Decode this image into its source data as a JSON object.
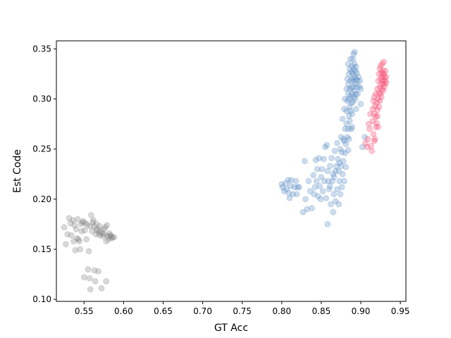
{
  "chart_data": {
    "type": "scatter",
    "xlabel": "GT Acc",
    "ylabel": "Est Code",
    "xlim": [
      0.515,
      0.957
    ],
    "ylim": [
      0.098,
      0.358
    ],
    "xticks": [
      "0.55",
      "0.60",
      "0.65",
      "0.70",
      "0.75",
      "0.80",
      "0.85",
      "0.90",
      "0.95"
    ],
    "yticks": [
      "0.10",
      "0.15",
      "0.20",
      "0.25",
      "0.30",
      "0.35"
    ],
    "grid": false,
    "legend": "none",
    "series": [
      {
        "color": "#808080",
        "opacity": 0.3,
        "points": [
          [
            0.525,
            0.172
          ],
          [
            0.527,
            0.155
          ],
          [
            0.529,
            0.165
          ],
          [
            0.531,
            0.181
          ],
          [
            0.533,
            0.176
          ],
          [
            0.534,
            0.164
          ],
          [
            0.536,
            0.179
          ],
          [
            0.537,
            0.158
          ],
          [
            0.539,
            0.149
          ],
          [
            0.54,
            0.17
          ],
          [
            0.541,
            0.161
          ],
          [
            0.542,
            0.18
          ],
          [
            0.543,
            0.16
          ],
          [
            0.545,
            0.15
          ],
          [
            0.546,
            0.175
          ],
          [
            0.547,
            0.168
          ],
          [
            0.548,
            0.177
          ],
          [
            0.549,
            0.178
          ],
          [
            0.55,
            0.122
          ],
          [
            0.551,
            0.169
          ],
          [
            0.552,
            0.176
          ],
          [
            0.553,
            0.16
          ],
          [
            0.554,
            0.174
          ],
          [
            0.555,
            0.13
          ],
          [
            0.556,
            0.148
          ],
          [
            0.557,
            0.121
          ],
          [
            0.558,
            0.173
          ],
          [
            0.558,
            0.11
          ],
          [
            0.559,
            0.184
          ],
          [
            0.56,
            0.168
          ],
          [
            0.561,
            0.177
          ],
          [
            0.562,
            0.179
          ],
          [
            0.563,
            0.173
          ],
          [
            0.563,
            0.129
          ],
          [
            0.564,
            0.118
          ],
          [
            0.565,
            0.165
          ],
          [
            0.566,
            0.175
          ],
          [
            0.567,
            0.17
          ],
          [
            0.568,
            0.128
          ],
          [
            0.569,
            0.166
          ],
          [
            0.57,
            0.164
          ],
          [
            0.57,
            0.173
          ],
          [
            0.571,
            0.168
          ],
          [
            0.572,
            0.111
          ],
          [
            0.573,
            0.166
          ],
          [
            0.574,
            0.163
          ],
          [
            0.575,
            0.17
          ],
          [
            0.576,
            0.165
          ],
          [
            0.577,
            0.172
          ],
          [
            0.578,
            0.158
          ],
          [
            0.578,
            0.118
          ],
          [
            0.579,
            0.174
          ],
          [
            0.58,
            0.163
          ],
          [
            0.581,
            0.16
          ],
          [
            0.582,
            0.166
          ],
          [
            0.583,
            0.163
          ],
          [
            0.584,
            0.164
          ],
          [
            0.585,
            0.161
          ],
          [
            0.586,
            0.162
          ],
          [
            0.588,
            0.162
          ],
          [
            0.566,
            0.169
          ],
          [
            0.544,
            0.158
          ],
          [
            0.538,
            0.174
          ]
        ]
      },
      {
        "color": "#5b8ac2",
        "opacity": 0.3,
        "points": [
          [
            0.8,
            0.215
          ],
          [
            0.801,
            0.212
          ],
          [
            0.803,
            0.208
          ],
          [
            0.805,
            0.216
          ],
          [
            0.806,
            0.21
          ],
          [
            0.808,
            0.219
          ],
          [
            0.809,
            0.206
          ],
          [
            0.81,
            0.201
          ],
          [
            0.811,
            0.213
          ],
          [
            0.812,
            0.219
          ],
          [
            0.814,
            0.205
          ],
          [
            0.816,
            0.212
          ],
          [
            0.818,
            0.218
          ],
          [
            0.819,
            0.205
          ],
          [
            0.82,
            0.212
          ],
          [
            0.822,
            0.212
          ],
          [
            0.827,
            0.187
          ],
          [
            0.829,
            0.238
          ],
          [
            0.83,
            0.2
          ],
          [
            0.832,
            0.19
          ],
          [
            0.834,
            0.218
          ],
          [
            0.836,
            0.208
          ],
          [
            0.838,
            0.191
          ],
          [
            0.84,
            0.224
          ],
          [
            0.841,
            0.205
          ],
          [
            0.842,
            0.212
          ],
          [
            0.843,
            0.239
          ],
          [
            0.844,
            0.218
          ],
          [
            0.845,
            0.23
          ],
          [
            0.846,
            0.203
          ],
          [
            0.847,
            0.241
          ],
          [
            0.848,
            0.213
          ],
          [
            0.849,
            0.2
          ],
          [
            0.85,
            0.222
          ],
          [
            0.851,
            0.23
          ],
          [
            0.852,
            0.208
          ],
          [
            0.853,
            0.24
          ],
          [
            0.854,
            0.218
          ],
          [
            0.855,
            0.252
          ],
          [
            0.856,
            0.201
          ],
          [
            0.857,
            0.254
          ],
          [
            0.858,
            0.228
          ],
          [
            0.858,
            0.175
          ],
          [
            0.859,
            0.218
          ],
          [
            0.86,
            0.21
          ],
          [
            0.861,
            0.233
          ],
          [
            0.862,
            0.195
          ],
          [
            0.863,
            0.241
          ],
          [
            0.864,
            0.218
          ],
          [
            0.865,
            0.225
          ],
          [
            0.865,
            0.187
          ],
          [
            0.866,
            0.205
          ],
          [
            0.867,
            0.248
          ],
          [
            0.868,
            0.228
          ],
          [
            0.868,
            0.198
          ],
          [
            0.869,
            0.233
          ],
          [
            0.87,
            0.21
          ],
          [
            0.87,
            0.256
          ],
          [
            0.871,
            0.24
          ],
          [
            0.872,
            0.195
          ],
          [
            0.872,
            0.228
          ],
          [
            0.873,
            0.218
          ],
          [
            0.874,
            0.25
          ],
          [
            0.874,
            0.205
          ],
          [
            0.875,
            0.262
          ],
          [
            0.875,
            0.233
          ],
          [
            0.876,
            0.247
          ],
          [
            0.876,
            0.212
          ],
          [
            0.877,
            0.28
          ],
          [
            0.877,
            0.225
          ],
          [
            0.878,
            0.26
          ],
          [
            0.878,
            0.238
          ],
          [
            0.879,
            0.29
          ],
          [
            0.879,
            0.218
          ],
          [
            0.88,
            0.27
          ],
          [
            0.88,
            0.246
          ],
          [
            0.88,
            0.3
          ],
          [
            0.881,
            0.232
          ],
          [
            0.881,
            0.255
          ],
          [
            0.882,
            0.31
          ],
          [
            0.882,
            0.275
          ],
          [
            0.882,
            0.288
          ],
          [
            0.883,
            0.32
          ],
          [
            0.883,
            0.262
          ],
          [
            0.883,
            0.298
          ],
          [
            0.884,
            0.335
          ],
          [
            0.884,
            0.305
          ],
          [
            0.884,
            0.27
          ],
          [
            0.884,
            0.315
          ],
          [
            0.885,
            0.283
          ],
          [
            0.885,
            0.325
          ],
          [
            0.885,
            0.3
          ],
          [
            0.885,
            0.26
          ],
          [
            0.886,
            0.31
          ],
          [
            0.886,
            0.292
          ],
          [
            0.886,
            0.33
          ],
          [
            0.886,
            0.278
          ],
          [
            0.887,
            0.318
          ],
          [
            0.887,
            0.303
          ],
          [
            0.887,
            0.34
          ],
          [
            0.887,
            0.288
          ],
          [
            0.888,
            0.327
          ],
          [
            0.888,
            0.311
          ],
          [
            0.888,
            0.296
          ],
          [
            0.888,
            0.27
          ],
          [
            0.889,
            0.333
          ],
          [
            0.889,
            0.32
          ],
          [
            0.889,
            0.305
          ],
          [
            0.889,
            0.285
          ],
          [
            0.89,
            0.34
          ],
          [
            0.89,
            0.325
          ],
          [
            0.89,
            0.312
          ],
          [
            0.89,
            0.297
          ],
          [
            0.891,
            0.345
          ],
          [
            0.891,
            0.33
          ],
          [
            0.891,
            0.318
          ],
          [
            0.891,
            0.302
          ],
          [
            0.892,
            0.335
          ],
          [
            0.892,
            0.322
          ],
          [
            0.892,
            0.308
          ],
          [
            0.892,
            0.347
          ],
          [
            0.893,
            0.328
          ],
          [
            0.893,
            0.315
          ],
          [
            0.893,
            0.3
          ],
          [
            0.894,
            0.332
          ],
          [
            0.894,
            0.32
          ],
          [
            0.894,
            0.305
          ],
          [
            0.895,
            0.326
          ],
          [
            0.895,
            0.312
          ],
          [
            0.896,
            0.318
          ],
          [
            0.896,
            0.305
          ],
          [
            0.897,
            0.322
          ],
          [
            0.898,
            0.312
          ],
          [
            0.899,
            0.318
          ],
          [
            0.9,
            0.31
          ],
          [
            0.9,
            0.295
          ],
          [
            0.902,
            0.252
          ],
          [
            0.905,
            0.262
          ],
          [
            0.894,
            0.29
          ],
          [
            0.889,
            0.272
          ],
          [
            0.884,
            0.249
          ],
          [
            0.879,
            0.258
          ],
          [
            0.873,
            0.236
          ],
          [
            0.866,
            0.222
          ],
          [
            0.861,
            0.213
          ]
        ]
      },
      {
        "color": "#f4436a",
        "opacity": 0.3,
        "points": [
          [
            0.906,
            0.256
          ],
          [
            0.908,
            0.252
          ],
          [
            0.909,
            0.26
          ],
          [
            0.91,
            0.275
          ],
          [
            0.911,
            0.27
          ],
          [
            0.912,
            0.285
          ],
          [
            0.913,
            0.253
          ],
          [
            0.914,
            0.248
          ],
          [
            0.915,
            0.29
          ],
          [
            0.915,
            0.278
          ],
          [
            0.916,
            0.298
          ],
          [
            0.916,
            0.265
          ],
          [
            0.917,
            0.302
          ],
          [
            0.917,
            0.285
          ],
          [
            0.918,
            0.293
          ],
          [
            0.918,
            0.26
          ],
          [
            0.919,
            0.305
          ],
          [
            0.919,
            0.282
          ],
          [
            0.92,
            0.296
          ],
          [
            0.92,
            0.276
          ],
          [
            0.921,
            0.31
          ],
          [
            0.921,
            0.289
          ],
          [
            0.922,
            0.318
          ],
          [
            0.922,
            0.3
          ],
          [
            0.922,
            0.272
          ],
          [
            0.923,
            0.325
          ],
          [
            0.923,
            0.306
          ],
          [
            0.923,
            0.292
          ],
          [
            0.924,
            0.33
          ],
          [
            0.924,
            0.312
          ],
          [
            0.924,
            0.298
          ],
          [
            0.925,
            0.32
          ],
          [
            0.925,
            0.305
          ],
          [
            0.925,
            0.333
          ],
          [
            0.926,
            0.315
          ],
          [
            0.926,
            0.326
          ],
          [
            0.926,
            0.302
          ],
          [
            0.927,
            0.322
          ],
          [
            0.927,
            0.31
          ],
          [
            0.927,
            0.335
          ],
          [
            0.928,
            0.318
          ],
          [
            0.928,
            0.328
          ],
          [
            0.928,
            0.308
          ],
          [
            0.929,
            0.325
          ],
          [
            0.929,
            0.315
          ],
          [
            0.929,
            0.337
          ],
          [
            0.93,
            0.322
          ],
          [
            0.93,
            0.312
          ],
          [
            0.931,
            0.318
          ],
          [
            0.931,
            0.328
          ],
          [
            0.932,
            0.316
          ],
          [
            0.932,
            0.322
          ],
          [
            0.919,
            0.272
          ],
          [
            0.917,
            0.258
          ],
          [
            0.921,
            0.283
          ]
        ]
      }
    ]
  }
}
